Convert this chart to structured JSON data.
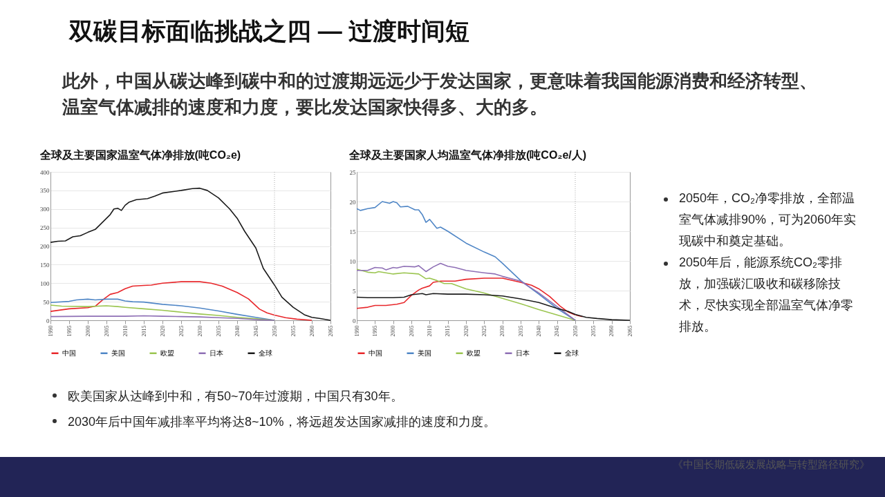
{
  "chart_data": [
    {
      "type": "other",
      "title": "双碳目标面临挑战之四 — 过渡时间短",
      "subtitle": "此外，中国从碳达峰到碳中和的过渡期远远少于发达国家，更意味着我国能源消费和经济转型、温室气体减排的速度和力度，要比发达国家快得多、大的多。",
      "annotations": [
        "2050年，CO₂净零排放，全部温室气体减排90%，可为2060年实现碳中和奠定基础。",
        "2050年后，能源系统CO₂零排放，加强碳汇吸收和碳移除技术，尽快实现全部温室气体净零排放。",
        "欧美国家从达峰到中和，有50~70年过渡期，中国只有30年。",
        "2030年后中国年减排率平均将达8~10%，将远超发达国家减排的速度和力度。",
        "《中国长期低碳发展战略与转型路径研究》"
      ]
    },
    {
      "type": "line",
      "title": "全球及主要国家温室气体净排放(吨CO₂e)",
      "xlim": [
        1990,
        2065
      ],
      "xticks": [
        1990,
        1995,
        2000,
        2005,
        2010,
        2015,
        2020,
        2025,
        2030,
        2035,
        2040,
        2045,
        2050,
        2055,
        2060,
        2065
      ],
      "ylim": [
        0,
        400
      ],
      "yticks": [
        0,
        50,
        100,
        150,
        200,
        250,
        300,
        350,
        400
      ],
      "grid": "y",
      "legend": "bottom",
      "line_style": "solid",
      "marker": "none",
      "ref_lines": [
        {
          "axis": "x",
          "value": 2050,
          "color": "#aaaaaa",
          "line_style": "dotted"
        }
      ],
      "series": [
        {
          "name": "中国",
          "color": "#e8262a",
          "x": [
            1990,
            1995,
            2000,
            2002,
            2004,
            2006,
            2008,
            2010,
            2012,
            2015,
            2017,
            2020,
            2025,
            2030,
            2033,
            2036,
            2040,
            2043,
            2046,
            2048,
            2050,
            2053,
            2056,
            2060
          ],
          "values": [
            24,
            31,
            34,
            38,
            55,
            70,
            75,
            85,
            92,
            94,
            95,
            100,
            104,
            104,
            100,
            92,
            75,
            58,
            30,
            20,
            14,
            7,
            3,
            0
          ]
        },
        {
          "name": "美国",
          "color": "#4f86c6",
          "x": [
            1990,
            1995,
            1997,
            2000,
            2002,
            2005,
            2008,
            2010,
            2012,
            2015,
            2020,
            2025,
            2030,
            2035,
            2040,
            2045,
            2050
          ],
          "values": [
            48,
            51,
            55,
            57,
            55,
            57,
            57,
            52,
            50,
            49,
            43,
            39,
            33,
            25,
            16,
            8,
            0
          ]
        },
        {
          "name": "欧盟",
          "color": "#9bc550",
          "x": [
            1990,
            1993,
            2000,
            2005,
            2008,
            2010,
            2015,
            2020,
            2025,
            2030,
            2035,
            2040,
            2045,
            2050
          ],
          "values": [
            41,
            38,
            37,
            39,
            37,
            35,
            31,
            27,
            22,
            17,
            13,
            8,
            4,
            0
          ]
        },
        {
          "name": "日本",
          "color": "#8e6fb5",
          "x": [
            1990,
            2000,
            2010,
            2015,
            2020,
            2025,
            2030,
            2035,
            2040,
            2045,
            2050
          ],
          "values": [
            10,
            11,
            11,
            12,
            11,
            10,
            9,
            7,
            5,
            2,
            0
          ]
        },
        {
          "name": "全球",
          "color": "#1a1a1a",
          "x": [
            1990,
            1992,
            1994,
            1996,
            1998,
            2000,
            2002,
            2004,
            2006,
            2007,
            2008,
            2009,
            2010,
            2011,
            2013,
            2016,
            2018,
            2020,
            2025,
            2028,
            2030,
            2032,
            2035,
            2038,
            2040,
            2042,
            2045,
            2047,
            2050,
            2052,
            2055,
            2058,
            2060,
            2062,
            2065
          ],
          "values": [
            210,
            213,
            214,
            225,
            228,
            237,
            245,
            265,
            285,
            300,
            302,
            296,
            310,
            318,
            325,
            328,
            335,
            343,
            350,
            355,
            356,
            350,
            330,
            300,
            275,
            240,
            195,
            140,
            95,
            62,
            35,
            15,
            8,
            5,
            0
          ]
        }
      ]
    },
    {
      "type": "line",
      "title": "全球及主要国家人均温室气体净排放(吨CO₂e/人)",
      "xlim": [
        1990,
        2065
      ],
      "xticks": [
        1990,
        1995,
        2000,
        2005,
        2010,
        2015,
        2020,
        2025,
        2030,
        2035,
        2040,
        2045,
        2050,
        2055,
        2060,
        2065
      ],
      "ylim": [
        0,
        25
      ],
      "yticks": [
        0,
        5,
        10,
        15,
        20,
        25
      ],
      "grid": "y",
      "legend": "bottom",
      "line_style": "solid",
      "marker": "none",
      "ref_lines": [
        {
          "axis": "x",
          "value": 2050,
          "color": "#aaaaaa",
          "line_style": "dotted"
        }
      ],
      "series": [
        {
          "name": "中国",
          "color": "#e8262a",
          "x": [
            1990,
            1993,
            1995,
            1998,
            2001,
            2003,
            2005,
            2007,
            2008,
            2010,
            2011,
            2013,
            2017,
            2020,
            2025,
            2030,
            2035,
            2038,
            2040,
            2043,
            2046,
            2048,
            2050,
            2052
          ],
          "values": [
            2.0,
            2.2,
            2.5,
            2.5,
            2.7,
            3.0,
            4.2,
            5.1,
            5.4,
            5.8,
            6.4,
            6.6,
            6.6,
            6.9,
            7.1,
            7.1,
            6.4,
            5.9,
            5.3,
            4.0,
            2.3,
            1.4,
            0.9,
            0.6
          ]
        },
        {
          "name": "美国",
          "color": "#4f86c6",
          "x": [
            1990,
            1991,
            1993,
            1995,
            1997,
            1999,
            2000,
            2001,
            2002,
            2004,
            2006,
            2007,
            2008,
            2009,
            2010,
            2012,
            2013,
            2015,
            2020,
            2025,
            2028,
            2030,
            2035,
            2040,
            2045,
            2050
          ],
          "values": [
            18.8,
            18.5,
            18.8,
            19.0,
            20.0,
            19.7,
            20.0,
            19.8,
            19.1,
            19.2,
            18.6,
            18.6,
            17.8,
            16.5,
            17.0,
            15.5,
            15.7,
            15.0,
            13.0,
            11.5,
            10.7,
            9.6,
            6.7,
            4.4,
            2.0,
            0
          ]
        },
        {
          "name": "欧盟",
          "color": "#9bc550",
          "x": [
            1990,
            1993,
            1995,
            1996,
            1998,
            2000,
            2003,
            2007,
            2009,
            2010,
            2012,
            2014,
            2016,
            2020,
            2025,
            2030,
            2035,
            2040,
            2045,
            2050
          ],
          "values": [
            8.6,
            8.1,
            8.0,
            8.2,
            8.0,
            7.8,
            8.0,
            7.8,
            7.0,
            7.1,
            6.7,
            6.2,
            6.2,
            5.3,
            4.6,
            3.7,
            2.8,
            1.8,
            0.9,
            0
          ]
        },
        {
          "name": "日本",
          "color": "#8e6fb5",
          "x": [
            1990,
            1993,
            1995,
            1997,
            1998,
            2000,
            2001,
            2003,
            2006,
            2007,
            2008,
            2009,
            2011,
            2013,
            2015,
            2017,
            2020,
            2025,
            2028,
            2030,
            2035,
            2040,
            2045,
            2050
          ],
          "values": [
            8.4,
            8.4,
            8.9,
            8.8,
            8.5,
            8.9,
            8.8,
            9.1,
            9.0,
            9.2,
            8.7,
            8.2,
            9.0,
            9.6,
            9.1,
            8.9,
            8.4,
            8.0,
            7.8,
            7.4,
            6.6,
            4.6,
            2.3,
            0
          ]
        },
        {
          "name": "全球",
          "color": "#1a1a1a",
          "x": [
            1990,
            1993,
            1997,
            2000,
            2003,
            2005,
            2008,
            2009,
            2011,
            2015,
            2020,
            2025,
            2030,
            2035,
            2040,
            2045,
            2048,
            2050,
            2053,
            2056,
            2060,
            2065
          ],
          "values": [
            3.9,
            3.8,
            3.8,
            3.8,
            3.9,
            4.3,
            4.5,
            4.3,
            4.5,
            4.4,
            4.4,
            4.3,
            4.1,
            3.6,
            3.0,
            2.0,
            1.5,
            1.0,
            0.5,
            0.3,
            0.1,
            0
          ]
        }
      ]
    }
  ]
}
